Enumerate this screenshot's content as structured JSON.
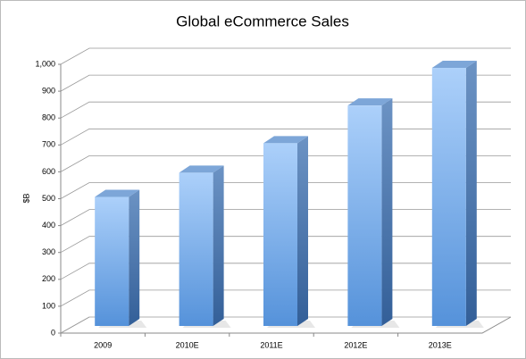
{
  "chart_data": {
    "type": "bar3d",
    "title": "Global eCommerce Sales",
    "y_label": "$B",
    "categories": [
      "2009",
      "2010E",
      "2011E",
      "2012E",
      "2013E"
    ],
    "values": [
      480,
      570,
      680,
      820,
      960
    ],
    "color": "#5b95d8",
    "ylim": [
      0,
      1000
    ],
    "yticks": [
      0,
      100,
      200,
      300,
      400,
      500,
      600,
      700,
      800,
      900,
      {
        "value": 1000,
        "label": "1,000"
      }
    ],
    "grid": true
  }
}
